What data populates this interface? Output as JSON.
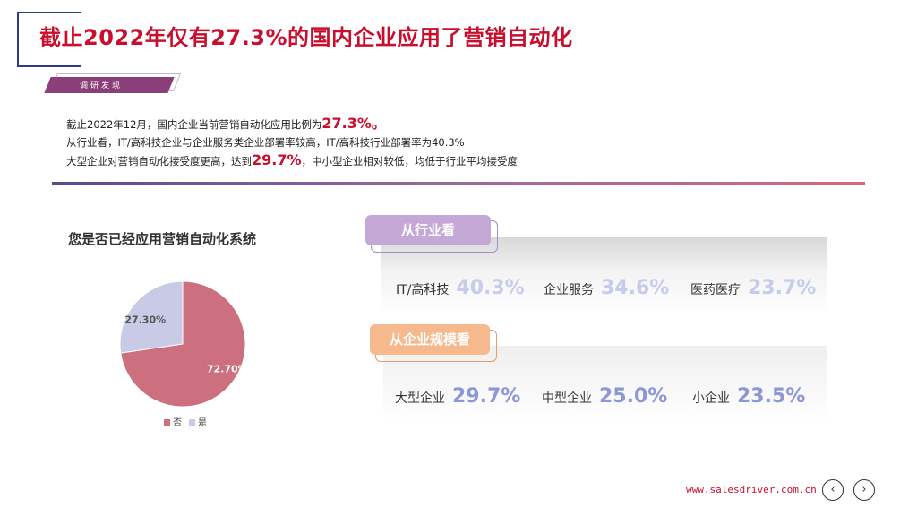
{
  "title": "截止2022年仅有27.3%的国内企业应用了营销自动化",
  "tag": "调研发现",
  "summary": {
    "line1_prefix": "截止2022年12月，国内企业当前营销自动化应用比例为",
    "line1_highlight": "27.3%。",
    "line2": "从行业看，IT/高科技企业与企业服务类企业部署率较高，IT/高科技行业部署率为40.3%",
    "line3_prefix": "大型企业对营销自动化接受度更高，达到",
    "line3_highlight": "29.7%",
    "line3_suffix": "，中小型企业相对较低，均低于行业平均接受度"
  },
  "chart_data": {
    "type": "pie",
    "title": "您是否已经应用营销自动化系统",
    "slices": [
      {
        "name": "否",
        "value": 72.7,
        "label": "72.70%",
        "color": "#cc6f7e"
      },
      {
        "name": "是",
        "value": 27.3,
        "label": "27.30%",
        "color": "#c9cbe6"
      }
    ],
    "legend_position": "bottom"
  },
  "industry": {
    "badge": "从行业看",
    "items": [
      {
        "label": "IT/高科技",
        "value": "40.3%"
      },
      {
        "label": "企业服务",
        "value": "34.6%"
      },
      {
        "label": "医药医疗",
        "value": "23.7%"
      }
    ]
  },
  "scale": {
    "badge": "从企业规模看",
    "items": [
      {
        "label": "大型企业",
        "value": "29.7%"
      },
      {
        "label": "中型企业",
        "value": "25.0%"
      },
      {
        "label": "小企业",
        "value": "23.5%"
      }
    ]
  },
  "footer": {
    "url": "www.salesdriver.com.cn",
    "prev_icon": "‹",
    "next_icon": "›"
  },
  "colors": {
    "title": "#c8102e",
    "accent_purple": "#8a3f7a",
    "stat_value_faint": "#c7ccec",
    "stat_value_solid": "#8c97d6"
  }
}
